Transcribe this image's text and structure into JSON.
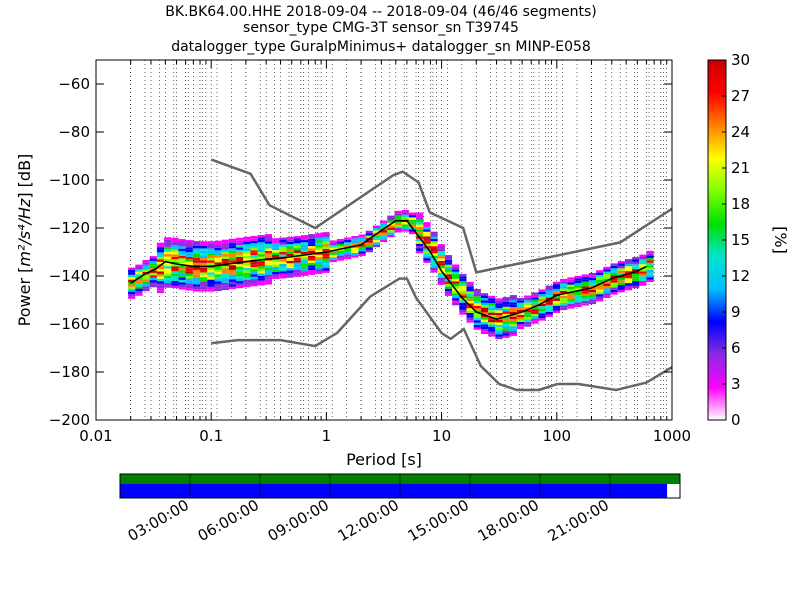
{
  "figure": {
    "title_lines": [
      "BK.BK64.00.HHE   2018-09-04 -- 2018-09-04  (46/46 segments)",
      "sensor_type CMG-3T sensor_sn T39745",
      "datalogger_type GuralpMinimus+ datalogger_sn MINP-E058"
    ]
  },
  "chart_data": {
    "type": "heatmap",
    "xlabel": "Period [s]",
    "ylabel_prefix": "Power [",
    "ylabel_math": "m²/s⁴/Hz",
    "ylabel_suffix": "] [dB]",
    "x_scale": "log",
    "xlim": [
      0.01,
      1000
    ],
    "ylim": [
      -200,
      -50
    ],
    "x_ticks": [
      {
        "value": 0.01,
        "label": "0.01"
      },
      {
        "value": 0.1,
        "label": "0.1"
      },
      {
        "value": 1,
        "label": "1"
      },
      {
        "value": 10,
        "label": "10"
      },
      {
        "value": 100,
        "label": "100"
      },
      {
        "value": 1000,
        "label": "1000"
      }
    ],
    "y_ticks": [
      {
        "value": -60,
        "label": "−60"
      },
      {
        "value": -80,
        "label": "−80"
      },
      {
        "value": -100,
        "label": "−100"
      },
      {
        "value": -120,
        "label": "−120"
      },
      {
        "value": -140,
        "label": "−140"
      },
      {
        "value": -160,
        "label": "−160"
      },
      {
        "value": -180,
        "label": "−180"
      },
      {
        "value": -200,
        "label": "−200"
      }
    ],
    "grid": "dotted vertical lines at period bins",
    "colorbar": {
      "label": "[%]",
      "range": [
        0,
        30
      ],
      "ticks": [
        {
          "value": 0,
          "label": "0"
        },
        {
          "value": 3,
          "label": "3"
        },
        {
          "value": 6,
          "label": "6"
        },
        {
          "value": 9,
          "label": "9"
        },
        {
          "value": 12,
          "label": "12"
        },
        {
          "value": 15,
          "label": "15"
        },
        {
          "value": 18,
          "label": "18"
        },
        {
          "value": 21,
          "label": "21"
        },
        {
          "value": 24,
          "label": "24"
        },
        {
          "value": 27,
          "label": "27"
        },
        {
          "value": 30,
          "label": "30"
        }
      ],
      "colors": [
        "#ffffff",
        "#ff00ff",
        "#8a2be2",
        "#0000ff",
        "#00bfff",
        "#00e5cc",
        "#00e000",
        "#80ff00",
        "#ffff00",
        "#ff8000",
        "#ff0000",
        "#c80000"
      ]
    },
    "noise_model_high": [
      {
        "x": 0.1,
        "y": -91.5
      },
      {
        "x": 0.22,
        "y": -97.4
      },
      {
        "x": 0.32,
        "y": -110.5
      },
      {
        "x": 0.8,
        "y": -120
      },
      {
        "x": 3.8,
        "y": -98
      },
      {
        "x": 4.6,
        "y": -96.5
      },
      {
        "x": 6.3,
        "y": -101
      },
      {
        "x": 7.9,
        "y": -113.5
      },
      {
        "x": 15.4,
        "y": -120
      },
      {
        "x": 20,
        "y": -138.5
      },
      {
        "x": 354.8,
        "y": -126
      },
      {
        "x": 1000,
        "y": -112
      }
    ],
    "noise_model_low": [
      {
        "x": 0.1,
        "y": -168
      },
      {
        "x": 0.17,
        "y": -166.7
      },
      {
        "x": 0.4,
        "y": -166.7
      },
      {
        "x": 0.8,
        "y": -169.2
      },
      {
        "x": 1.24,
        "y": -163.7
      },
      {
        "x": 2.4,
        "y": -148.6
      },
      {
        "x": 4.3,
        "y": -141.1
      },
      {
        "x": 5,
        "y": -141.1
      },
      {
        "x": 6,
        "y": -149
      },
      {
        "x": 10,
        "y": -163.8
      },
      {
        "x": 12,
        "y": -166.2
      },
      {
        "x": 15.6,
        "y": -162.1
      },
      {
        "x": 21.9,
        "y": -177.5
      },
      {
        "x": 31.6,
        "y": -185
      },
      {
        "x": 45,
        "y": -187.5
      },
      {
        "x": 70,
        "y": -187.5
      },
      {
        "x": 101,
        "y": -185
      },
      {
        "x": 154,
        "y": -185
      },
      {
        "x": 328,
        "y": -187.5
      },
      {
        "x": 600,
        "y": -184.4
      },
      {
        "x": 1000,
        "y": -178
      }
    ],
    "mode_curve": [
      {
        "x": 0.02,
        "y": -143
      },
      {
        "x": 0.027,
        "y": -139
      },
      {
        "x": 0.033,
        "y": -137
      },
      {
        "x": 0.04,
        "y": -134
      },
      {
        "x": 0.05,
        "y": -135
      },
      {
        "x": 0.07,
        "y": -136
      },
      {
        "x": 0.1,
        "y": -136
      },
      {
        "x": 0.2,
        "y": -134
      },
      {
        "x": 0.3,
        "y": -133
      },
      {
        "x": 0.5,
        "y": -132
      },
      {
        "x": 1,
        "y": -130
      },
      {
        "x": 2,
        "y": -127
      },
      {
        "x": 3,
        "y": -121
      },
      {
        "x": 4,
        "y": -117
      },
      {
        "x": 5,
        "y": -117
      },
      {
        "x": 6,
        "y": -122
      },
      {
        "x": 8,
        "y": -130
      },
      {
        "x": 10,
        "y": -138
      },
      {
        "x": 15,
        "y": -149
      },
      {
        "x": 20,
        "y": -155
      },
      {
        "x": 30,
        "y": -158
      },
      {
        "x": 50,
        "y": -155
      },
      {
        "x": 70,
        "y": -152
      },
      {
        "x": 100,
        "y": -148
      },
      {
        "x": 200,
        "y": -145
      },
      {
        "x": 300,
        "y": -141
      },
      {
        "x": 500,
        "y": -138
      },
      {
        "x": 600,
        "y": -136
      }
    ],
    "density_bands": [
      {
        "x_from": 0.018,
        "x_to": 0.03,
        "y_center": -141,
        "spread": 3
      },
      {
        "x_from": 0.03,
        "x_to": 0.3,
        "y_center": -135,
        "spread": 5
      },
      {
        "x_from": 0.3,
        "x_to": 1,
        "y_center": -132,
        "spread": 4
      },
      {
        "x_from": 1,
        "x_to": 2.5,
        "y_center": -128,
        "spread": 2
      },
      {
        "x_from": 2.5,
        "x_to": 6,
        "y_center": -119,
        "spread": 2
      },
      {
        "x_from": 6,
        "x_to": 12,
        "y_center": -135,
        "spread": 4
      },
      {
        "x_from": 12,
        "x_to": 40,
        "y_center": -155,
        "spread": 4
      },
      {
        "x_from": 40,
        "x_to": 200,
        "y_center": -150,
        "spread": 3
      },
      {
        "x_from": 200,
        "x_to": 600,
        "y_center": -139,
        "spread": 3
      }
    ],
    "data_coverage": {
      "labels": [
        "03:00:00",
        "06:00:00",
        "09:00:00",
        "12:00:00",
        "15:00:00",
        "18:00:00",
        "21:00:00"
      ],
      "top_bar_color": "#008000",
      "bottom_bar_color": "#0000ff",
      "coverage_fraction": 0.977
    }
  }
}
